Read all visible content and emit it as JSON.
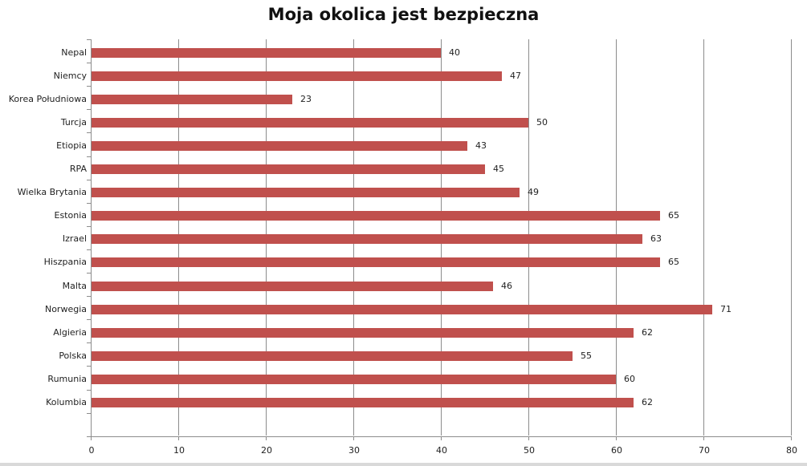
{
  "chart_data": {
    "type": "bar",
    "orientation": "horizontal",
    "title": "Moja okolica jest bezpieczna",
    "xlabel": "",
    "ylabel": "",
    "xlim": [
      0,
      80
    ],
    "x_ticks": [
      "0",
      "10",
      "20",
      "30",
      "40",
      "50",
      "60",
      "70",
      "80"
    ],
    "grid": "vertical",
    "legend": "none",
    "bar_color": "#c0504d",
    "categories": [
      "Nepal",
      "Niemcy",
      "Korea Południowa",
      "Turcja",
      "Etiopia",
      "RPA",
      "Wielka Brytania",
      "Estonia",
      "Izrael",
      "Hiszpania",
      "Malta",
      "Norwegia",
      "Algieria",
      "Polska",
      "Rumunia",
      "Kolumbia"
    ],
    "values": [
      40,
      47,
      23,
      50,
      43,
      45,
      49,
      65,
      63,
      65,
      46,
      71,
      62,
      55,
      60,
      62
    ],
    "value_labels": [
      "40",
      "47",
      "23",
      "50",
      "43",
      "45",
      "49",
      "65",
      "63",
      "65",
      "46",
      "71",
      "62",
      "55",
      "60",
      "62"
    ]
  }
}
